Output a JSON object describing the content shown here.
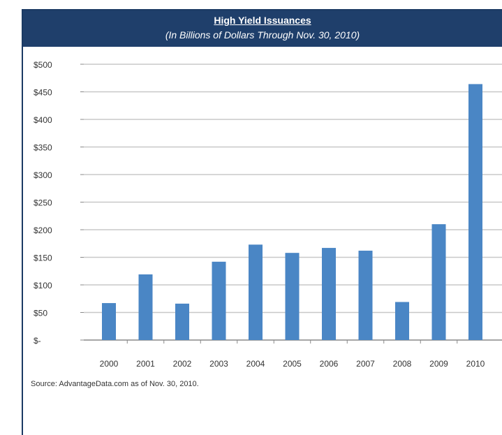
{
  "chart_data": {
    "type": "bar",
    "title": "High Yield Issuances",
    "subtitle": "(In Billions of Dollars Through Nov. 30, 2010)",
    "categories": [
      "2000",
      "2001",
      "2002",
      "2003",
      "2004",
      "2005",
      "2006",
      "2007",
      "2008",
      "2009",
      "2010"
    ],
    "values": [
      67,
      119,
      66,
      142,
      173,
      158,
      167,
      162,
      69,
      210,
      464
    ],
    "ylim": [
      0,
      500
    ],
    "yticks": [
      0,
      50,
      100,
      150,
      200,
      250,
      300,
      350,
      400,
      450,
      500
    ],
    "ytick_labels": [
      "$-",
      "$50",
      "$100",
      "$150",
      "$200",
      "$250",
      "$300",
      "$350",
      "$400",
      "$450",
      "$500"
    ],
    "xlabel": "",
    "ylabel": "",
    "grid": true,
    "bar_color": "#4a86c5",
    "header_color": "#1f3f6b"
  },
  "source": "Source: AdvantageData.com as of Nov. 30, 2010."
}
